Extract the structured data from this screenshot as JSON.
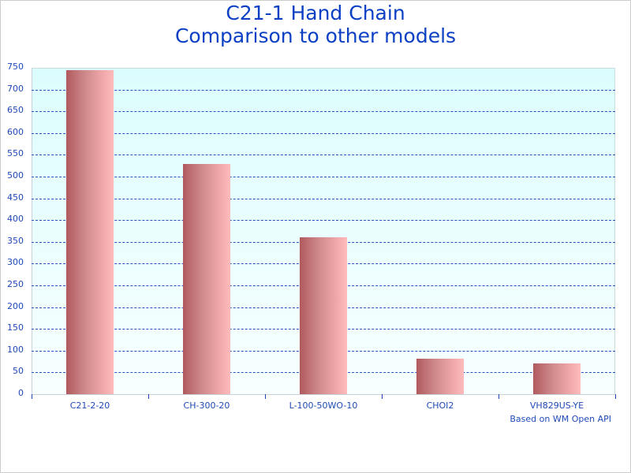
{
  "chart_data": {
    "type": "bar",
    "title": "C21-1 Hand Chain",
    "subtitle": "Comparison to other models",
    "categories": [
      "C21-2-20",
      "CH-300-20",
      "L-100-50WO-10",
      "CHOI2",
      "VH829US-YE"
    ],
    "values": [
      745,
      529,
      360,
      82,
      71
    ],
    "xlabel": "",
    "ylabel": "",
    "ylim": [
      0,
      750
    ],
    "yticks": [
      0,
      50,
      100,
      150,
      200,
      250,
      300,
      350,
      400,
      450,
      500,
      550,
      600,
      650,
      700,
      750
    ],
    "grid": true,
    "legend": null,
    "annotation": "Based on WM Open API",
    "colors": {
      "title": "#0b3fc4",
      "axis_text": "#1f49b8",
      "grid": "#2a52be",
      "bar_dark": "#b05a5e",
      "bar_light": "#fdbbbb",
      "plot_bg_top": "#dcfdfd",
      "plot_bg_bottom": "#f8ffff"
    }
  }
}
